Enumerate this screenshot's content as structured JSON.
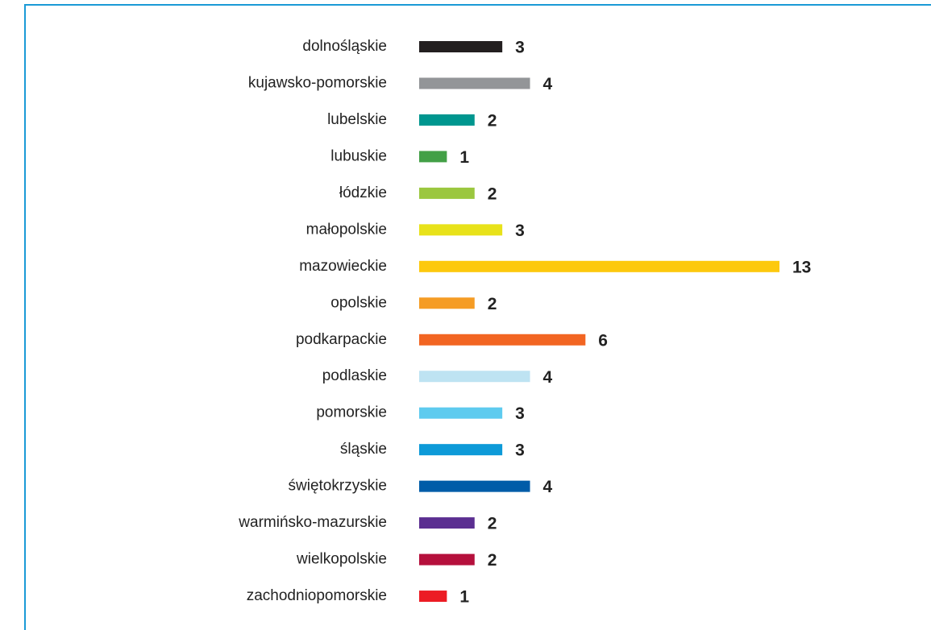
{
  "chart_data": {
    "type": "bar",
    "orientation": "horizontal",
    "categories": [
      "dolnośląskie",
      "kujawsko-pomorskie",
      "lubelskie",
      "lubuskie",
      "łódzkie",
      "małopolskie",
      "mazowieckie",
      "opolskie",
      "podkarpackie",
      "podlaskie",
      "pomorskie",
      "śląskie",
      "świętokrzyskie",
      "warmińsko-mazurskie",
      "wielkopolskie",
      "zachodniopomorskie"
    ],
    "values": [
      3,
      4,
      2,
      1,
      2,
      3,
      13,
      2,
      6,
      4,
      3,
      3,
      4,
      2,
      2,
      1
    ],
    "colors": [
      "#231f20",
      "#939598",
      "#00968f",
      "#43a047",
      "#9bc73f",
      "#e8e21a",
      "#fdc90d",
      "#f59c24",
      "#f26522",
      "#bee3f2",
      "#5ecbef",
      "#0d9ad8",
      "#005ca8",
      "#5b2e91",
      "#b5103c",
      "#ec1c24"
    ]
  }
}
